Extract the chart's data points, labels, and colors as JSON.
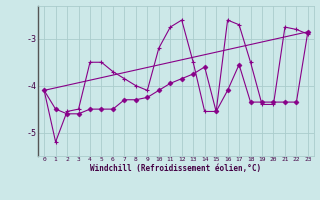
{
  "xlabel": "Windchill (Refroidissement éolien,°C)",
  "bg_color": "#cce8e8",
  "line_color": "#880088",
  "grid_color": "#aacccc",
  "xlim": [
    -0.5,
    23.5
  ],
  "ylim": [
    -5.5,
    -2.3
  ],
  "yticks": [
    -5,
    -4,
    -3
  ],
  "xtick_labels": [
    "0",
    "1",
    "2",
    "3",
    "4",
    "5",
    "6",
    "7",
    "8",
    "9",
    "10",
    "11",
    "12",
    "13",
    "14",
    "15",
    "16",
    "17",
    "18",
    "19",
    "20",
    "21",
    "22",
    "23"
  ],
  "line1_x": [
    0,
    1,
    2,
    3,
    4,
    5,
    6,
    7,
    8,
    9,
    10,
    11,
    12,
    13,
    14,
    15,
    16,
    17,
    18,
    19,
    20,
    21,
    22,
    23
  ],
  "line1_y": [
    -4.1,
    -5.2,
    -4.55,
    -4.5,
    -3.5,
    -3.5,
    -3.7,
    -3.85,
    -4.0,
    -4.1,
    -3.2,
    -2.75,
    -2.6,
    -3.5,
    -4.55,
    -4.55,
    -2.6,
    -2.7,
    -3.5,
    -4.4,
    -4.4,
    -2.75,
    -2.8,
    -2.9
  ],
  "line2_x": [
    0,
    1,
    2,
    3,
    4,
    5,
    6,
    7,
    8,
    9,
    10,
    11,
    12,
    13,
    14,
    15,
    16,
    17,
    18,
    19,
    20,
    21,
    22,
    23
  ],
  "line2_y": [
    -4.1,
    -4.5,
    -4.6,
    -4.6,
    -4.5,
    -4.5,
    -4.5,
    -4.3,
    -4.3,
    -4.25,
    -4.1,
    -3.95,
    -3.85,
    -3.75,
    -3.6,
    -4.55,
    -4.1,
    -3.55,
    -4.35,
    -4.35,
    -4.35,
    -4.35,
    -4.35,
    -2.85
  ],
  "line3_x": [
    0,
    23
  ],
  "line3_y": [
    -4.1,
    -2.85
  ],
  "marker1": "+",
  "marker2": "D",
  "markersize1": 3.5,
  "markersize2": 2.5
}
